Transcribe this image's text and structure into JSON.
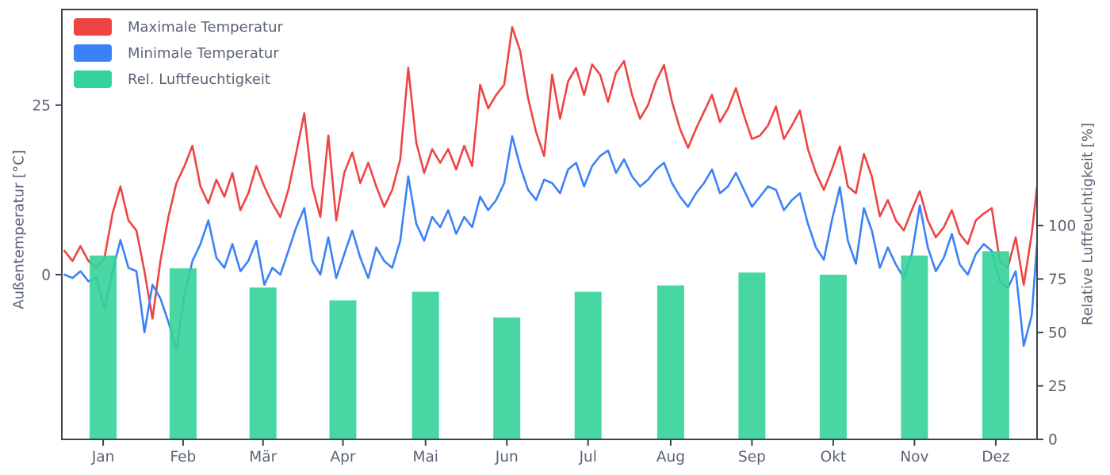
{
  "chart_data": {
    "type": "mixed",
    "title": "",
    "xlabel": "",
    "ylabel_left": "Außentemperatur [°C]",
    "ylabel_right": "Relative Luftfeuchtigkeit [%]",
    "x_tick_labels": [
      "Jan",
      "Feb",
      "Mär",
      "Apr",
      "Mai",
      "Jun",
      "Jul",
      "Aug",
      "Sep",
      "Okt",
      "Nov",
      "Dez"
    ],
    "x_tick_days": [
      15.5,
      45.5,
      75.5,
      105.5,
      136.5,
      167,
      197.5,
      228.5,
      259,
      289.5,
      320,
      350.5
    ],
    "days_in_year": 366,
    "ylim_left": [
      -24.3,
      39.1
    ],
    "yticks_left": [
      0,
      25
    ],
    "ylim_right": [
      0,
      201
    ],
    "yticks_right": [
      0,
      25,
      50,
      75,
      100
    ],
    "grid": false,
    "legend_position": "upper-left",
    "text_color": "#5a6474",
    "spine_color": "#3d4450",
    "series": [
      {
        "name": "Maximale Temperatur",
        "type": "line",
        "axis": "left",
        "color": "#ee4444",
        "x_days": [
          1,
          4,
          7,
          10,
          13,
          16,
          19,
          22,
          25,
          28,
          31,
          34,
          37,
          40,
          43,
          46,
          49,
          52,
          55,
          58,
          61,
          64,
          67,
          70,
          73,
          76,
          79,
          82,
          85,
          88,
          91,
          94,
          97,
          100,
          103,
          106,
          109,
          112,
          115,
          118,
          121,
          124,
          127,
          130,
          133,
          136,
          139,
          142,
          145,
          148,
          151,
          154,
          157,
          160,
          163,
          166,
          169,
          172,
          175,
          178,
          181,
          184,
          187,
          190,
          193,
          196,
          199,
          202,
          205,
          208,
          211,
          214,
          217,
          220,
          223,
          226,
          229,
          232,
          235,
          238,
          241,
          244,
          247,
          250,
          253,
          256,
          259,
          262,
          265,
          268,
          271,
          274,
          277,
          280,
          283,
          286,
          289,
          292,
          295,
          298,
          301,
          304,
          307,
          310,
          313,
          316,
          319,
          322,
          325,
          328,
          331,
          334,
          337,
          340,
          343,
          346,
          349,
          352,
          355,
          358,
          361,
          364,
          366
        ],
        "values": [
          3.5,
          2.0,
          4.2,
          2.0,
          1.0,
          2.5,
          9.0,
          13.0,
          8.0,
          6.5,
          0.5,
          -6.5,
          2.0,
          8.5,
          13.5,
          16.0,
          19.0,
          13.0,
          10.5,
          14.0,
          11.5,
          15.0,
          9.5,
          12.0,
          16.0,
          13.0,
          10.5,
          8.5,
          12.5,
          18.0,
          23.8,
          13.0,
          8.5,
          20.5,
          8.0,
          15.0,
          18.0,
          13.5,
          16.5,
          13.0,
          10.0,
          12.5,
          17.0,
          30.5,
          19.5,
          15.0,
          18.5,
          16.5,
          18.5,
          15.5,
          19.0,
          16.0,
          28.0,
          24.5,
          26.5,
          28.0,
          36.5,
          33.0,
          26.0,
          21.0,
          17.5,
          29.5,
          23.0,
          28.5,
          30.5,
          26.5,
          31.0,
          29.5,
          25.5,
          29.8,
          31.5,
          26.5,
          23.0,
          25.0,
          28.5,
          30.9,
          25.5,
          21.5,
          18.7,
          21.5,
          24.0,
          26.5,
          22.5,
          24.5,
          27.5,
          23.5,
          20.0,
          20.5,
          22.0,
          24.8,
          20.0,
          22.0,
          24.2,
          18.5,
          15.0,
          12.5,
          15.5,
          18.9,
          13.0,
          12.0,
          17.8,
          14.5,
          8.6,
          11.0,
          8.0,
          6.5,
          9.5,
          12.3,
          8.0,
          5.5,
          7.0,
          9.5,
          6.0,
          4.5,
          8.0,
          9.0,
          9.8,
          2.0,
          1.0,
          5.5,
          -1.5,
          6.0,
          13.0
        ]
      },
      {
        "name": "Minimale Temperatur",
        "type": "line",
        "axis": "left",
        "color": "#3b82f6",
        "x_days": [
          1,
          4,
          7,
          10,
          13,
          16,
          19,
          22,
          25,
          28,
          31,
          34,
          37,
          40,
          43,
          46,
          49,
          52,
          55,
          58,
          61,
          64,
          67,
          70,
          73,
          76,
          79,
          82,
          85,
          88,
          91,
          94,
          97,
          100,
          103,
          106,
          109,
          112,
          115,
          118,
          121,
          124,
          127,
          130,
          133,
          136,
          139,
          142,
          145,
          148,
          151,
          154,
          157,
          160,
          163,
          166,
          169,
          172,
          175,
          178,
          181,
          184,
          187,
          190,
          193,
          196,
          199,
          202,
          205,
          208,
          211,
          214,
          217,
          220,
          223,
          226,
          229,
          232,
          235,
          238,
          241,
          244,
          247,
          250,
          253,
          256,
          259,
          262,
          265,
          268,
          271,
          274,
          277,
          280,
          283,
          286,
          289,
          292,
          295,
          298,
          301,
          304,
          307,
          310,
          313,
          316,
          319,
          322,
          325,
          328,
          331,
          334,
          337,
          340,
          343,
          346,
          349,
          352,
          355,
          358,
          361,
          364,
          366
        ],
        "values": [
          0.0,
          -0.5,
          0.5,
          -1.0,
          -0.5,
          -5.0,
          0.5,
          5.1,
          1.0,
          0.5,
          -8.5,
          -1.5,
          -3.5,
          -7.0,
          -11.0,
          -3.0,
          2.0,
          4.5,
          8.0,
          2.5,
          1.0,
          4.5,
          0.5,
          2.0,
          5.0,
          -1.5,
          1.0,
          0.0,
          3.5,
          7.0,
          9.8,
          2.0,
          0.0,
          5.5,
          -0.5,
          3.0,
          6.5,
          2.5,
          -0.5,
          4.0,
          2.0,
          1.0,
          5.0,
          14.5,
          7.5,
          5.0,
          8.5,
          7.0,
          9.5,
          6.0,
          8.5,
          7.0,
          11.5,
          9.5,
          11.0,
          13.5,
          20.4,
          16.0,
          12.5,
          11.0,
          14.0,
          13.5,
          12.0,
          15.5,
          16.5,
          13.0,
          16.0,
          17.5,
          18.3,
          15.0,
          17.0,
          14.5,
          13.0,
          14.0,
          15.5,
          16.5,
          13.5,
          11.5,
          10.0,
          12.0,
          13.5,
          15.5,
          12.0,
          13.0,
          15.0,
          12.5,
          10.0,
          11.5,
          13.0,
          12.5,
          9.5,
          11.0,
          12.0,
          7.5,
          4.0,
          2.2,
          8.0,
          12.9,
          5.0,
          1.6,
          9.8,
          6.5,
          1.0,
          4.0,
          1.5,
          -0.5,
          3.0,
          10.2,
          4.0,
          0.5,
          2.5,
          6.0,
          1.5,
          0.0,
          3.0,
          4.5,
          3.5,
          -1.0,
          -2.0,
          0.5,
          -10.5,
          -6.0,
          4.6
        ]
      },
      {
        "name": "Rel. Luftfeuchtigkeit",
        "type": "bar",
        "axis": "right",
        "color": "#34d399",
        "categories": [
          "Jan",
          "Feb",
          "Mär",
          "Apr",
          "Mai",
          "Jun",
          "Jul",
          "Aug",
          "Sep",
          "Okt",
          "Nov",
          "Dez"
        ],
        "values": [
          86,
          80,
          71,
          65,
          69,
          57,
          69,
          72,
          78,
          77,
          86,
          88
        ]
      }
    ]
  }
}
